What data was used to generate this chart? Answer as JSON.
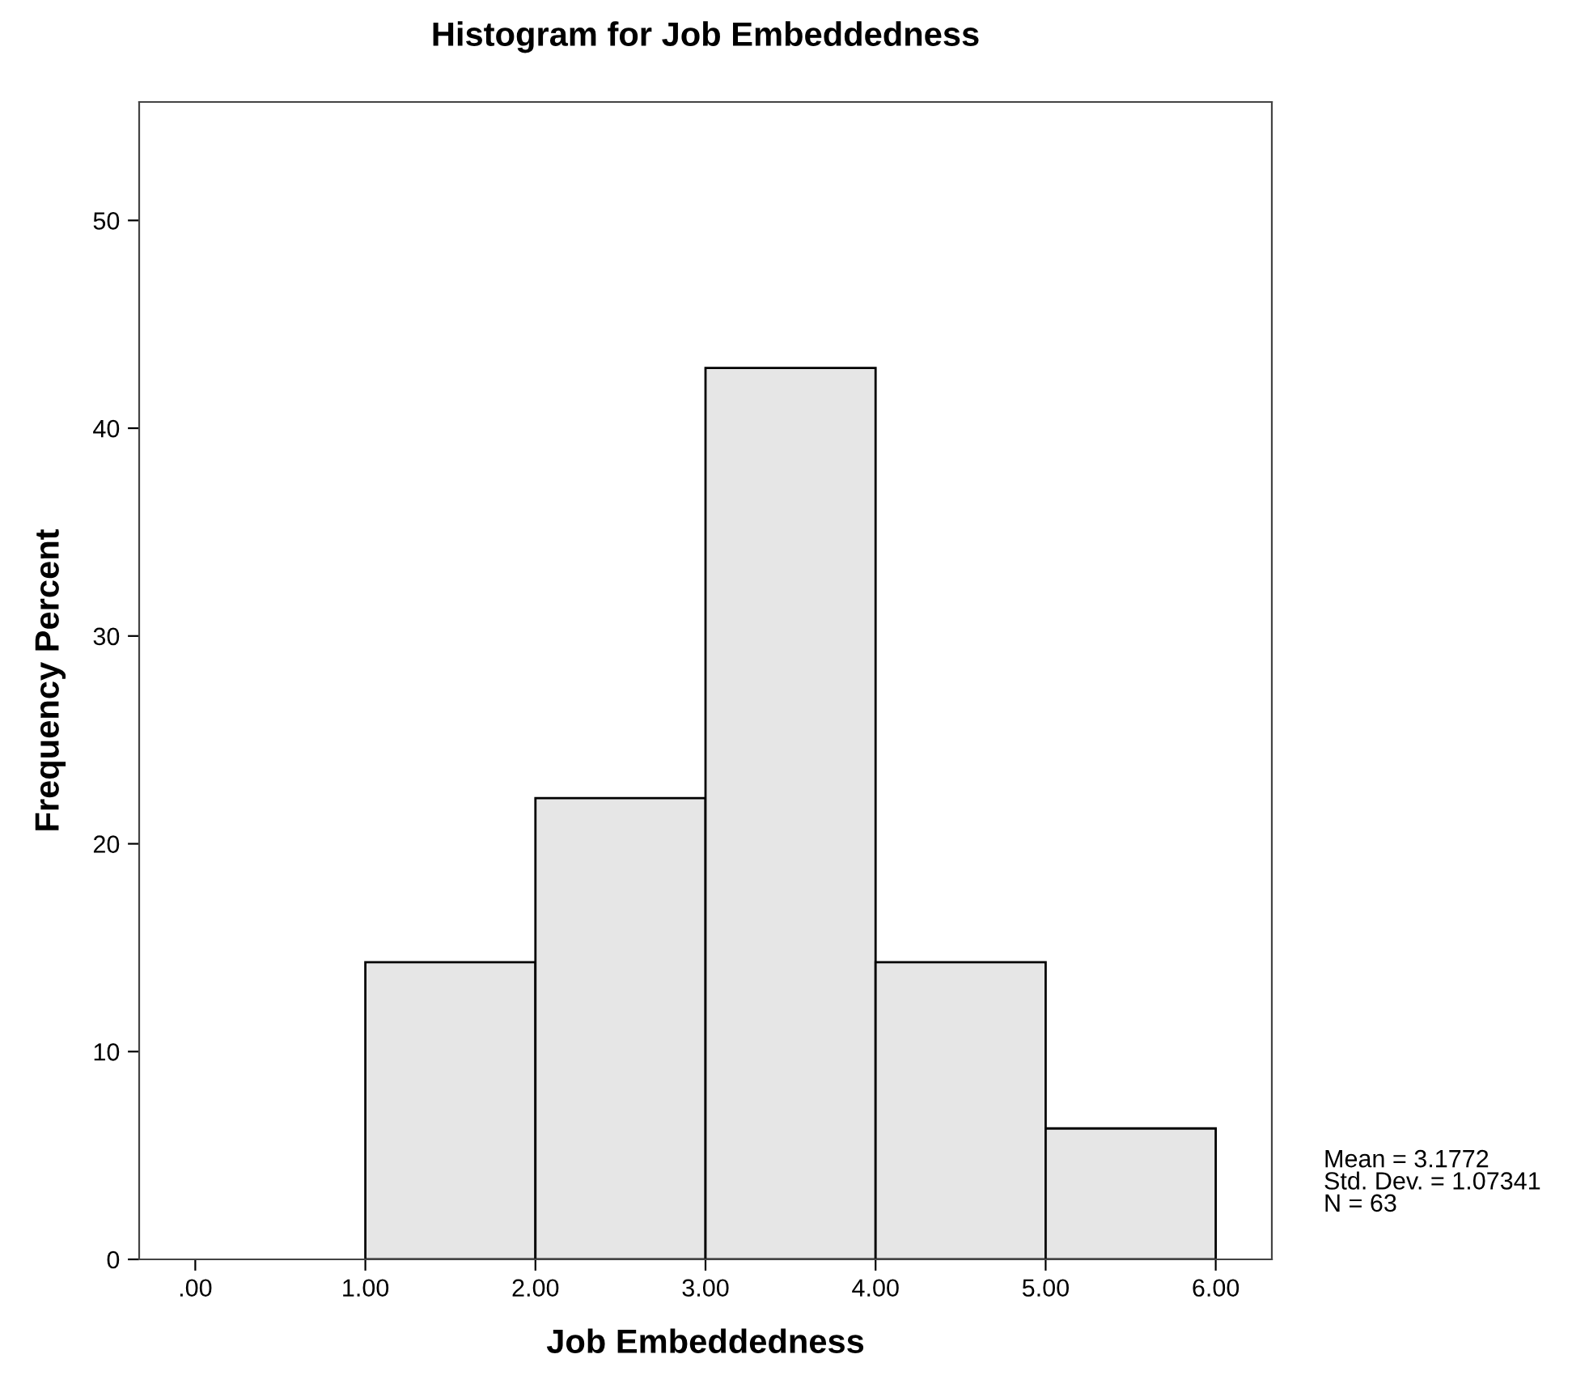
{
  "chart_data": {
    "type": "histogram",
    "title": "Histogram for Job Embeddedness",
    "xlabel": "Job Embeddedness",
    "ylabel": "Frequency Percent",
    "bins": [
      1,
      2,
      3,
      4,
      5,
      6
    ],
    "values": [
      14.3,
      22.2,
      42.9,
      14.3,
      6.3
    ],
    "color": "#e6e6e6",
    "xlim": [
      -0.33,
      6.33
    ],
    "ylim": [
      0,
      55.7
    ],
    "xticks": [
      {
        "value": 0,
        "label": ".00"
      },
      {
        "value": 1,
        "label": "1.00"
      },
      {
        "value": 2,
        "label": "2.00"
      },
      {
        "value": 3,
        "label": "3.00"
      },
      {
        "value": 4,
        "label": "4.00"
      },
      {
        "value": 5,
        "label": "5.00"
      },
      {
        "value": 6,
        "label": "6.00"
      }
    ],
    "yticks": [
      0,
      10,
      20,
      30,
      40,
      50
    ],
    "grid": false,
    "legend": false,
    "annotations": [
      "Mean = 3.1772",
      "Std. Dev. = 1.07341",
      "N = 63"
    ]
  }
}
